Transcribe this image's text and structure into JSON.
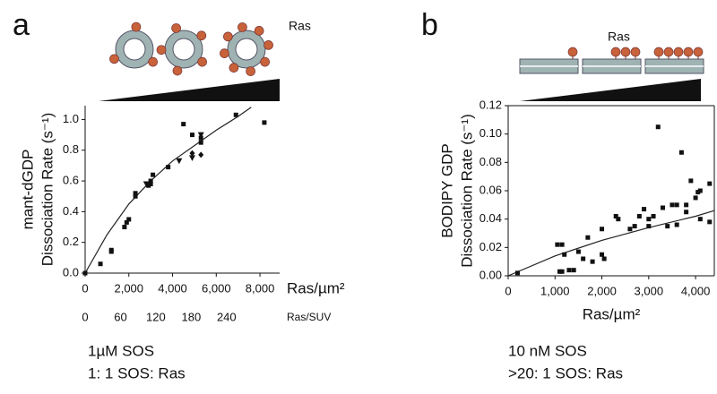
{
  "chart_data": [
    {
      "type": "scatter",
      "panel": "a",
      "annotation": "Ras",
      "ylabel": [
        "mant-dGDP",
        "Dissociation Rate (s⁻¹)"
      ],
      "xlabel": "Ras/µm²",
      "x2label": "Ras/SUV",
      "frame": "axes",
      "xlim": [
        0,
        8900
      ],
      "ylim": [
        0,
        1.09
      ],
      "x2lim": [
        0,
        330
      ],
      "xticks": [
        0,
        {
          "value": 2000,
          "label": "2,000"
        },
        {
          "value": 4000,
          "label": "4,000"
        },
        {
          "value": 6000,
          "label": "6,000"
        },
        {
          "value": 8000,
          "label": "8,000"
        }
      ],
      "yticks": [
        {
          "value": 0,
          "label": "0.0"
        },
        {
          "value": 0.2,
          "label": "0.2"
        },
        {
          "value": 0.4,
          "label": "0.4"
        },
        {
          "value": 0.6,
          "label": "0.6"
        },
        {
          "value": 0.8,
          "label": "0.8"
        },
        {
          "value": 1,
          "label": "1.0"
        }
      ],
      "x2ticks": [
        0,
        60,
        120,
        180,
        240
      ],
      "series": [
        {
          "marker": "square",
          "color": "#111111",
          "x": [
            0,
            700,
            1200,
            1200,
            1800,
            1900,
            2000,
            2300,
            2300,
            2900,
            3000,
            3000,
            3100,
            3800,
            4500,
            4900,
            5300,
            5300,
            6900,
            8200
          ],
          "y": [
            0,
            0.06,
            0.15,
            0.14,
            0.3,
            0.33,
            0.35,
            0.5,
            0.52,
            0.57,
            0.58,
            0.6,
            0.64,
            0.69,
            0.97,
            0.9,
            0.88,
            0.85,
            1.03,
            0.98
          ]
        },
        {
          "marker": "triangle",
          "color": "#111111",
          "x": [
            2800,
            4300,
            4900,
            5300
          ],
          "y": [
            0.58,
            0.73,
            0.75,
            0.9
          ]
        },
        {
          "marker": "diamond",
          "color": "#111111",
          "x": [
            4900,
            5300
          ],
          "y": [
            0.78,
            0.77
          ]
        }
      ],
      "fit": {
        "color": "#222222",
        "x": [
          0,
          1000,
          2000,
          3000,
          4000,
          5000,
          6000,
          7000,
          7600
        ],
        "y": [
          0,
          0.25,
          0.45,
          0.6,
          0.73,
          0.83,
          0.93,
          1.02,
          1.08
        ]
      },
      "caption": [
        "1µM SOS",
        "1: 1 SOS: Ras"
      ]
    },
    {
      "type": "scatter",
      "panel": "b",
      "annotation": "Ras",
      "ylabel": [
        "BODIPY GDP",
        "Dissociation Rate (s⁻¹)"
      ],
      "xlabel": "Ras/µm²",
      "frame": "box",
      "xlim": [
        0,
        4400
      ],
      "ylim": [
        0,
        0.12
      ],
      "xticks": [
        0,
        {
          "value": 1000,
          "label": "1,000"
        },
        {
          "value": 2000,
          "label": "2,000"
        },
        {
          "value": 3000,
          "label": "3,000"
        },
        {
          "value": 4000,
          "label": "4,000"
        }
      ],
      "yticks": [
        {
          "value": 0,
          "label": "0.00"
        },
        {
          "value": 0.02,
          "label": "0.02"
        },
        {
          "value": 0.04,
          "label": "0.04"
        },
        {
          "value": 0.06,
          "label": "0.06"
        },
        {
          "value": 0.08,
          "label": "0.08"
        },
        {
          "value": 0.1,
          "label": "0.10"
        },
        {
          "value": 0.12,
          "label": "0.12"
        }
      ],
      "series": [
        {
          "marker": "square",
          "color": "#111111",
          "x": [
            200,
            1050,
            1150,
            1100,
            1150,
            1200,
            1300,
            1400,
            1500,
            1600,
            1700,
            1800,
            2000,
            2000,
            2050,
            2300,
            2350,
            2600,
            2700,
            2800,
            2900,
            3000,
            3000,
            3100,
            3200,
            3300,
            3400,
            3500,
            3600,
            3600,
            3700,
            3800,
            3800,
            3900,
            4000,
            4050,
            4100,
            4100,
            4300,
            4300
          ],
          "y": [
            0.002,
            0.022,
            0.022,
            0.003,
            0.003,
            0.015,
            0.004,
            0.004,
            0.017,
            0.012,
            0.027,
            0.01,
            0.015,
            0.033,
            0.012,
            0.042,
            0.04,
            0.033,
            0.035,
            0.042,
            0.047,
            0.04,
            0.035,
            0.042,
            0.105,
            0.048,
            0.035,
            0.05,
            0.036,
            0.05,
            0.087,
            0.05,
            0.045,
            0.067,
            0.055,
            0.059,
            0.06,
            0.04,
            0.065,
            0.038
          ]
        }
      ],
      "fit": {
        "color": "#222222",
        "x": [
          0,
          1000,
          2000,
          3000,
          4000,
          4400
        ],
        "y": [
          0,
          0.014,
          0.025,
          0.034,
          0.042,
          0.046
        ]
      },
      "caption": [
        "10 nM SOS",
        ">20: 1 SOS: Ras"
      ]
    }
  ]
}
